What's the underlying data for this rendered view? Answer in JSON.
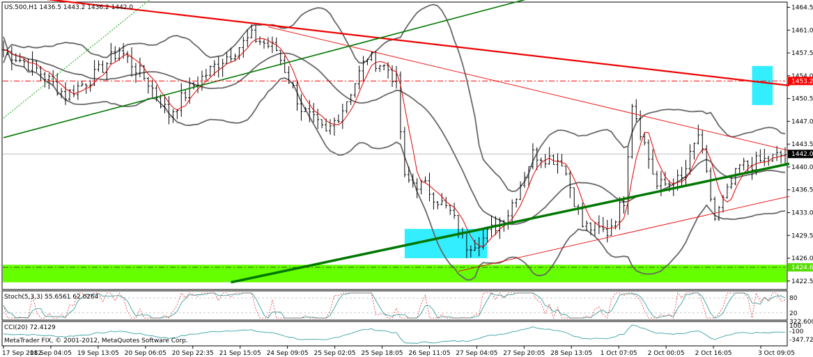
{
  "header": {
    "symbol_line": "US.500,H1  1436.5 1443.2 1436.2 1442.0",
    "stoch_label": "Stoch(5,3,3) 55.6561 62.0264",
    "cci_label": "CCI(20) 72.4129",
    "copyright": "MetaTrader FIX, © 2001-2012, MetaQuotes Software Corp."
  },
  "price_scale": {
    "ticks": [
      "1464.5",
      "1461.0",
      "1457.5",
      "1454.0",
      "1450.5",
      "1447.0",
      "1443.5",
      "1440.0",
      "1436.5",
      "1433.0",
      "1429.5",
      "1426.0",
      "1422.5"
    ],
    "markers": [
      {
        "label": "1453.2",
        "value": 1453.2,
        "color": "#ff0000"
      },
      {
        "label": "1442.0",
        "value": 1442.0,
        "color": "#000000"
      },
      {
        "label": "1424.6",
        "value": 1424.6,
        "color": "#55dd00"
      }
    ]
  },
  "stoch_scale": {
    "ticks": [
      "80",
      "20"
    ]
  },
  "cci_scale": {
    "ticks": [
      "322.600",
      "100",
      "-100",
      "-347.720"
    ]
  },
  "time_labels": [
    "17 Sep 2012",
    "18 Sep 04:05",
    "19 Sep 13:05",
    "20 Sep 06:05",
    "20 Sep 22:35",
    "21 Sep 15:05",
    "24 Sep 09:05",
    "25 Sep 02:05",
    "25 Sep 18:05",
    "26 Sep 11:05",
    "27 Sep 04:05",
    "27 Sep 20:05",
    "28 Sep 13:05",
    "1 Oct 07:05",
    "2 Oct 00:05",
    "2 Oct 16:05",
    "3 Oct 09:05"
  ],
  "chart_data": {
    "type": "line",
    "ylim": [
      1421.2,
      1465.3
    ],
    "candle_steps": 190,
    "key_points": [
      [
        0,
        1458
      ],
      [
        8,
        1455
      ],
      [
        15,
        1451
      ],
      [
        22,
        1454
      ],
      [
        28,
        1458
      ],
      [
        35,
        1453
      ],
      [
        40,
        1448
      ],
      [
        45,
        1452
      ],
      [
        52,
        1456
      ],
      [
        60,
        1460
      ],
      [
        66,
        1458
      ],
      [
        72,
        1449
      ],
      [
        78,
        1445
      ],
      [
        82,
        1449
      ],
      [
        88,
        1457
      ],
      [
        93,
        1455
      ],
      [
        95,
        1453
      ],
      [
        97,
        1438
      ],
      [
        102,
        1437
      ],
      [
        108,
        1433
      ],
      [
        112,
        1428
      ],
      [
        116,
        1429
      ],
      [
        122,
        1433
      ],
      [
        128,
        1442
      ],
      [
        135,
        1441
      ],
      [
        140,
        1431
      ],
      [
        146,
        1430
      ],
      [
        150,
        1435
      ],
      [
        152,
        1450
      ],
      [
        158,
        1437
      ],
      [
        164,
        1438
      ],
      [
        168,
        1445
      ],
      [
        172,
        1432
      ],
      [
        178,
        1440
      ],
      [
        184,
        1441
      ],
      [
        189,
        1442
      ]
    ],
    "zones": [
      {
        "name": "support",
        "from": 1422.3,
        "to": 1425.0,
        "color": "#66ff00"
      },
      {
        "name": "box-low",
        "x0": 97,
        "x1": 117,
        "from": 1426.0,
        "to": 1430.5,
        "color": "#33eeff"
      },
      {
        "name": "box-high",
        "x0": 181,
        "x1": 186,
        "from": 1449.5,
        "to": 1455.5,
        "color": "#33eeff"
      }
    ],
    "trendlines": [
      {
        "name": "red-thick",
        "p0": [
          0,
          1466.5
        ],
        "p1": [
          190,
          1452.5
        ],
        "color": "#ee0000",
        "w": 2.2
      },
      {
        "name": "red-thin-upper",
        "p0": [
          64,
          1461.5
        ],
        "p1": [
          190,
          1442.5
        ],
        "color": "#ee0000",
        "w": 0.9
      },
      {
        "name": "red-thin-lower",
        "p0": [
          110,
          1424.0
        ],
        "p1": [
          190,
          1435.5
        ],
        "color": "#ee0000",
        "w": 0.9
      },
      {
        "name": "green-upper",
        "p0": [
          0,
          1444.5
        ],
        "p1": [
          128,
          1466.0
        ],
        "color": "#007700",
        "w": 1.6
      },
      {
        "name": "green-thick",
        "p0": [
          55,
          1422.3
        ],
        "p1": [
          190,
          1440.5
        ],
        "color": "#007700",
        "w": 3.5
      }
    ]
  }
}
